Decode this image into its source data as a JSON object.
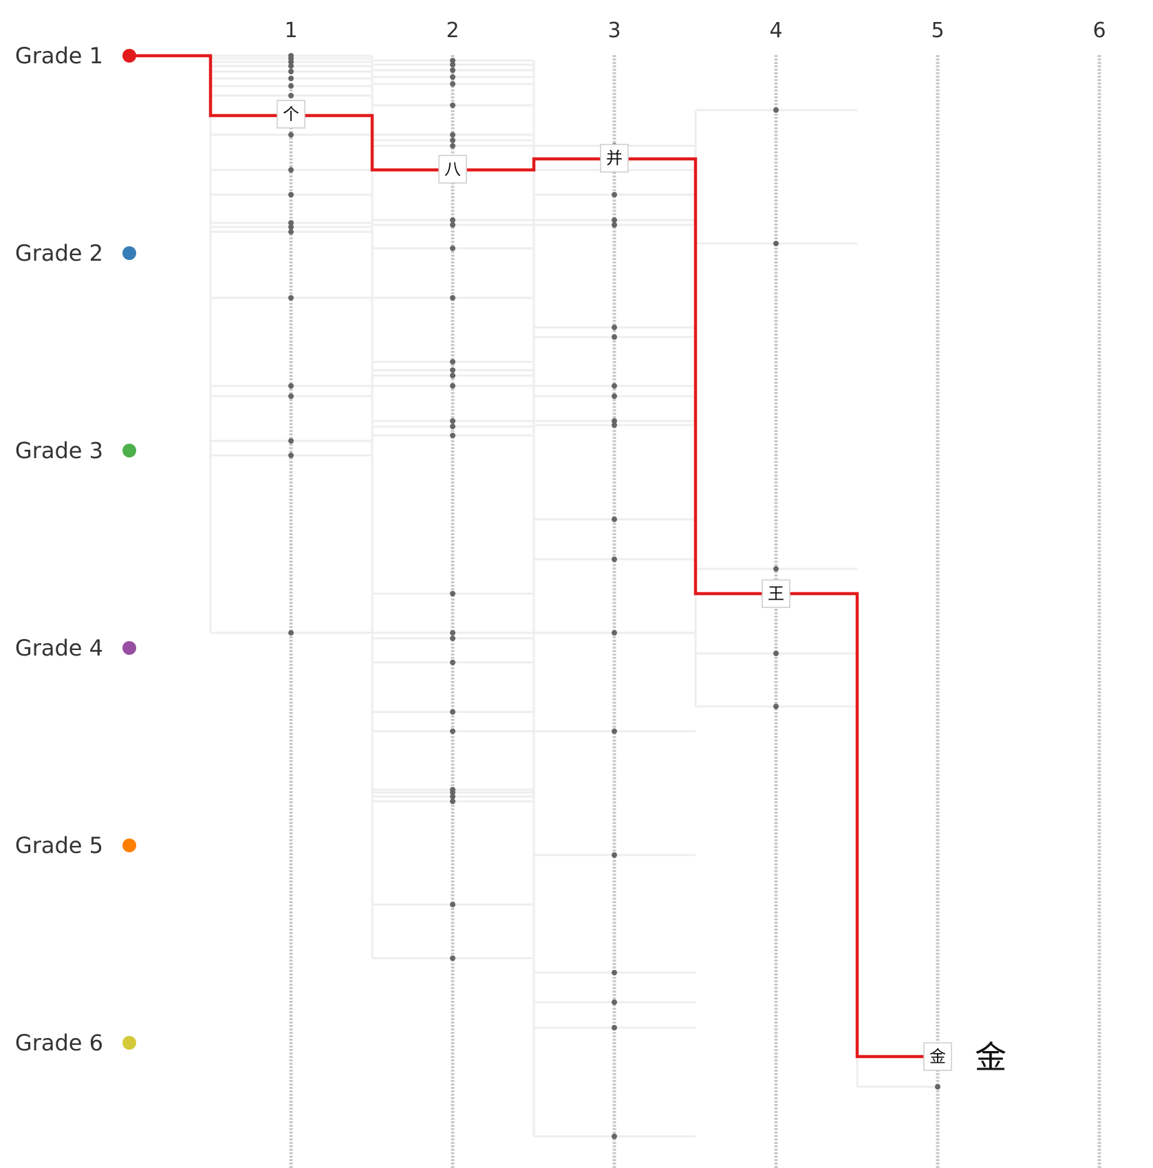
{
  "columns": [
    "1",
    "2",
    "3",
    "4",
    "5",
    "6"
  ],
  "grades": [
    {
      "label": "Grade 1",
      "color": "#e31a1c"
    },
    {
      "label": "Grade 2",
      "color": "#377eb8"
    },
    {
      "label": "Grade 3",
      "color": "#4daf4a"
    },
    {
      "label": "Grade 4",
      "color": "#984ea3"
    },
    {
      "label": "Grade 5",
      "color": "#ff7f00"
    },
    {
      "label": "Grade 6",
      "color": "#d4c938"
    }
  ],
  "path": [
    {
      "kanji": "个",
      "column": 1
    },
    {
      "kanji": "八",
      "column": 2
    },
    {
      "kanji": "并",
      "column": 3
    },
    {
      "kanji": "王",
      "column": 4
    },
    {
      "kanji": "金",
      "column": 5
    }
  ],
  "result_kanji": "金",
  "path_color": "#e31a1c"
}
